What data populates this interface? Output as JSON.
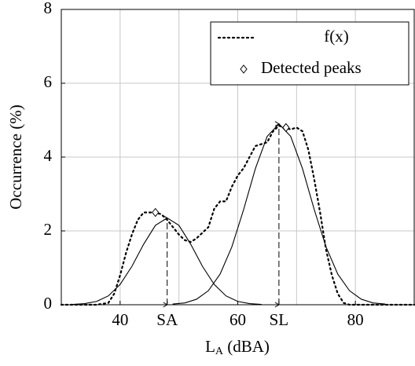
{
  "chart_data": {
    "type": "line",
    "ylabel": "Occurrence (%)",
    "xlabel": "L",
    "xlabel_sub": "A",
    "xlabel_rest": " (dBA)",
    "xlim": [
      30,
      90
    ],
    "ylim": [
      0,
      8
    ],
    "xticks": [
      40,
      {
        "value": 48,
        "label": "SA"
      },
      60,
      {
        "value": 67,
        "label": "SL"
      },
      80
    ],
    "yticks": [
      0,
      2,
      4,
      6,
      8
    ],
    "xgrid": [
      40,
      50,
      60,
      70,
      80
    ],
    "grid": true,
    "legend": "upper right",
    "series": [
      {
        "name": "f(x)",
        "color": "#000000",
        "style": "dotted",
        "x": [
          30,
          32,
          34,
          36,
          38,
          39,
          40,
          41,
          42,
          43,
          44,
          45,
          46,
          47,
          48,
          49,
          50,
          51,
          52,
          53,
          54,
          55,
          56,
          57,
          58,
          59,
          60,
          61,
          62,
          63,
          64,
          65,
          66,
          67,
          68,
          69,
          70,
          71,
          72,
          73,
          74,
          75,
          76,
          77,
          78,
          79,
          82,
          86,
          90
        ],
        "values": [
          0,
          0,
          0,
          0,
          0.05,
          0.3,
          0.8,
          1.4,
          1.9,
          2.3,
          2.5,
          2.5,
          2.5,
          2.45,
          2.3,
          2.1,
          1.9,
          1.75,
          1.7,
          1.8,
          1.95,
          2.1,
          2.6,
          2.8,
          2.8,
          3.2,
          3.5,
          3.7,
          4.0,
          4.3,
          4.35,
          4.4,
          4.7,
          4.85,
          4.8,
          4.75,
          4.8,
          4.7,
          4.2,
          3.4,
          2.5,
          1.5,
          0.8,
          0.3,
          0.05,
          0,
          0,
          0,
          0
        ]
      },
      {
        "color": "#000000",
        "style": "solid",
        "x": [
          32,
          34,
          36,
          38,
          40,
          42,
          44,
          46,
          48,
          50,
          52,
          54,
          56,
          58,
          60,
          62,
          64
        ],
        "values": [
          0.01,
          0.03,
          0.09,
          0.24,
          0.55,
          1.04,
          1.64,
          2.15,
          2.35,
          2.15,
          1.64,
          1.04,
          0.55,
          0.24,
          0.09,
          0.03,
          0.01
        ]
      },
      {
        "color": "#000000",
        "style": "solid",
        "x": [
          49,
          51,
          53,
          55,
          57,
          59,
          61,
          63,
          65,
          67,
          69,
          71,
          73,
          75,
          77,
          79,
          81,
          83,
          85
        ],
        "values": [
          0.02,
          0.05,
          0.15,
          0.38,
          0.83,
          1.57,
          2.58,
          3.69,
          4.56,
          4.9,
          4.56,
          3.69,
          2.58,
          1.57,
          0.83,
          0.38,
          0.15,
          0.05,
          0.02
        ]
      },
      {
        "name": "Detected peaks",
        "color": "#000000",
        "style": "diamond",
        "x": [
          46,
          68.2
        ],
        "values": [
          2.5,
          4.8
        ]
      }
    ]
  }
}
